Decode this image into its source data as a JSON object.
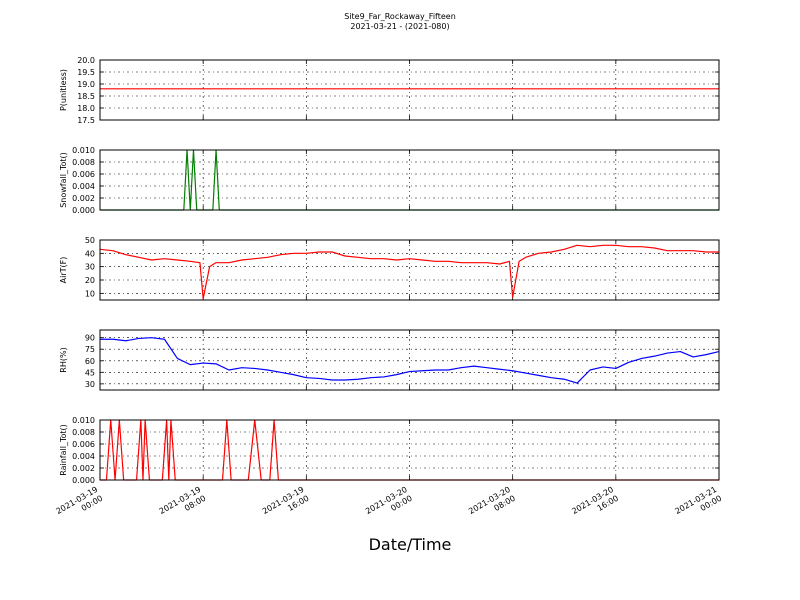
{
  "figure": {
    "title": "Site9_Far_Rockaway_Fifteen",
    "subtitle": "2021-03-21 - (2021-080)",
    "xlabel": "Date/Time"
  },
  "chart_data": [
    {
      "type": "line",
      "ylabel": "P(unitless)",
      "ylim": [
        17.5,
        20.0
      ],
      "yticks": [
        "17.5",
        "18.0",
        "18.5",
        "19.0",
        "19.5",
        "20.0"
      ],
      "grid": true,
      "series": [
        {
          "color": "#ff0000",
          "x": [
            "2021-03-19 00:00",
            "2021-03-21 00:00"
          ],
          "y": [
            18.8,
            18.8
          ]
        }
      ]
    },
    {
      "type": "line",
      "ylabel": "Snowfall_Tot()",
      "ylim": [
        0.0,
        0.01
      ],
      "yticks": [
        "0.000",
        "0.002",
        "0.004",
        "0.006",
        "0.008",
        "0.010"
      ],
      "grid": true,
      "series": [
        {
          "color": "#007f00",
          "x": [
            "2021-03-19 00:00",
            "2021-03-19 06:30",
            "2021-03-19 06:45",
            "2021-03-19 07:00",
            "2021-03-19 07:15",
            "2021-03-19 07:30",
            "2021-03-19 07:45",
            "2021-03-19 08:00",
            "2021-03-19 08:45",
            "2021-03-19 09:00",
            "2021-03-19 09:15",
            "2021-03-21 00:00"
          ],
          "y": [
            0,
            0,
            0.01,
            0,
            0.01,
            0,
            0,
            0,
            0,
            0.01,
            0,
            0
          ]
        }
      ]
    },
    {
      "type": "line",
      "ylabel": "AirT(F)",
      "ylim": [
        5,
        50
      ],
      "yticks": [
        "10",
        "20",
        "30",
        "40",
        "50"
      ],
      "grid": true,
      "series": [
        {
          "color": "#ff0000",
          "x": [
            "2021-03-19 00:00",
            "2021-03-19 01:00",
            "2021-03-19 02:00",
            "2021-03-19 03:00",
            "2021-03-19 04:00",
            "2021-03-19 05:00",
            "2021-03-19 06:00",
            "2021-03-19 07:00",
            "2021-03-19 07:45",
            "2021-03-19 08:00",
            "2021-03-19 08:30",
            "2021-03-19 09:00",
            "2021-03-19 10:00",
            "2021-03-19 11:00",
            "2021-03-19 12:00",
            "2021-03-19 13:00",
            "2021-03-19 14:00",
            "2021-03-19 15:00",
            "2021-03-19 16:00",
            "2021-03-19 17:00",
            "2021-03-19 18:00",
            "2021-03-19 19:00",
            "2021-03-19 20:00",
            "2021-03-19 21:00",
            "2021-03-19 22:00",
            "2021-03-19 23:00",
            "2021-03-20 00:00",
            "2021-03-20 01:00",
            "2021-03-20 02:00",
            "2021-03-20 03:00",
            "2021-03-20 04:00",
            "2021-03-20 05:00",
            "2021-03-20 06:00",
            "2021-03-20 07:00",
            "2021-03-20 07:45",
            "2021-03-20 08:00",
            "2021-03-20 08:30",
            "2021-03-20 09:00",
            "2021-03-20 10:00",
            "2021-03-20 11:00",
            "2021-03-20 12:00",
            "2021-03-20 13:00",
            "2021-03-20 14:00",
            "2021-03-20 15:00",
            "2021-03-20 16:00",
            "2021-03-20 17:00",
            "2021-03-20 18:00",
            "2021-03-20 19:00",
            "2021-03-20 20:00",
            "2021-03-20 21:00",
            "2021-03-20 22:00",
            "2021-03-20 23:00",
            "2021-03-21 00:00"
          ],
          "y": [
            43,
            42,
            39,
            37,
            35,
            36,
            35,
            34,
            33,
            6,
            30,
            33,
            33,
            35,
            36,
            37,
            39,
            40,
            40,
            41,
            41,
            38,
            37,
            36,
            36,
            35,
            36,
            35,
            34,
            34,
            33,
            33,
            33,
            32,
            34,
            7,
            34,
            37,
            40,
            41,
            43,
            46,
            45,
            46,
            46,
            45,
            45,
            44,
            42,
            42,
            42,
            41,
            41
          ]
        }
      ]
    },
    {
      "type": "line",
      "ylabel": "RH(%)",
      "ylim": [
        22,
        100
      ],
      "yticks": [
        "30",
        "45",
        "60",
        "75",
        "90"
      ],
      "grid": true,
      "series": [
        {
          "color": "#0000ff",
          "x": [
            "2021-03-19 00:00",
            "2021-03-19 01:00",
            "2021-03-19 02:00",
            "2021-03-19 03:00",
            "2021-03-19 04:00",
            "2021-03-19 05:00",
            "2021-03-19 06:00",
            "2021-03-19 07:00",
            "2021-03-19 08:00",
            "2021-03-19 09:00",
            "2021-03-19 10:00",
            "2021-03-19 11:00",
            "2021-03-19 12:00",
            "2021-03-19 13:00",
            "2021-03-19 14:00",
            "2021-03-19 15:00",
            "2021-03-19 16:00",
            "2021-03-19 17:00",
            "2021-03-19 18:00",
            "2021-03-19 19:00",
            "2021-03-19 20:00",
            "2021-03-19 21:00",
            "2021-03-19 22:00",
            "2021-03-19 23:00",
            "2021-03-20 00:00",
            "2021-03-20 01:00",
            "2021-03-20 02:00",
            "2021-03-20 03:00",
            "2021-03-20 04:00",
            "2021-03-20 05:00",
            "2021-03-20 06:00",
            "2021-03-20 07:00",
            "2021-03-20 08:00",
            "2021-03-20 09:00",
            "2021-03-20 10:00",
            "2021-03-20 11:00",
            "2021-03-20 12:00",
            "2021-03-20 13:00",
            "2021-03-20 14:00",
            "2021-03-20 15:00",
            "2021-03-20 16:00",
            "2021-03-20 17:00",
            "2021-03-20 18:00",
            "2021-03-20 19:00",
            "2021-03-20 20:00",
            "2021-03-20 21:00",
            "2021-03-20 22:00",
            "2021-03-20 23:00",
            "2021-03-21 00:00"
          ],
          "y": [
            88,
            88,
            86,
            89,
            90,
            88,
            63,
            55,
            57,
            56,
            48,
            51,
            50,
            48,
            45,
            42,
            38,
            37,
            35,
            35,
            36,
            38,
            39,
            42,
            46,
            47,
            48,
            48,
            51,
            53,
            51,
            49,
            47,
            44,
            41,
            38,
            36,
            31,
            48,
            52,
            50,
            58,
            63,
            66,
            70,
            72,
            65,
            68,
            72
          ]
        }
      ]
    },
    {
      "type": "line",
      "ylabel": "Rainfall_Tot()",
      "ylim": [
        0.0,
        0.01
      ],
      "yticks": [
        "0.000",
        "0.002",
        "0.004",
        "0.006",
        "0.008",
        "0.010"
      ],
      "grid": true,
      "series": [
        {
          "color": "#ff0000",
          "x": [
            "2021-03-19 00:00",
            "2021-03-19 00:30",
            "2021-03-19 00:50",
            "2021-03-19 01:10",
            "2021-03-19 01:30",
            "2021-03-19 01:50",
            "2021-03-19 02:50",
            "2021-03-19 03:10",
            "2021-03-19 03:20",
            "2021-03-19 03:30",
            "2021-03-19 03:50",
            "2021-03-19 04:50",
            "2021-03-19 05:10",
            "2021-03-19 05:20",
            "2021-03-19 05:30",
            "2021-03-19 05:50",
            "2021-03-19 09:30",
            "2021-03-19 09:50",
            "2021-03-19 10:10",
            "2021-03-19 11:30",
            "2021-03-19 12:00",
            "2021-03-19 12:30",
            "2021-03-19 13:10",
            "2021-03-19 13:30",
            "2021-03-19 13:50",
            "2021-03-21 00:00"
          ],
          "y": [
            0,
            0,
            0.01,
            0,
            0.01,
            0,
            0,
            0.01,
            0,
            0.01,
            0,
            0,
            0.01,
            0,
            0.01,
            0,
            0,
            0.01,
            0,
            0,
            0.01,
            0,
            0,
            0.01,
            0,
            0
          ]
        }
      ]
    }
  ],
  "x_axis": {
    "range": [
      "2021-03-19 00:00",
      "2021-03-21 00:00"
    ],
    "ticks": [
      {
        "at": "2021-03-19 00:00",
        "line1": "2021-03-19",
        "line2": "00:00"
      },
      {
        "at": "2021-03-19 08:00",
        "line1": "2021-03-19",
        "line2": "08:00"
      },
      {
        "at": "2021-03-19 16:00",
        "line1": "2021-03-19",
        "line2": "16:00"
      },
      {
        "at": "2021-03-20 00:00",
        "line1": "2021-03-20",
        "line2": "00:00"
      },
      {
        "at": "2021-03-20 08:00",
        "line1": "2021-03-20",
        "line2": "08:00"
      },
      {
        "at": "2021-03-20 16:00",
        "line1": "2021-03-20",
        "line2": "16:00"
      },
      {
        "at": "2021-03-21 00:00",
        "line1": "2021-03-21",
        "line2": "00:00"
      }
    ]
  }
}
